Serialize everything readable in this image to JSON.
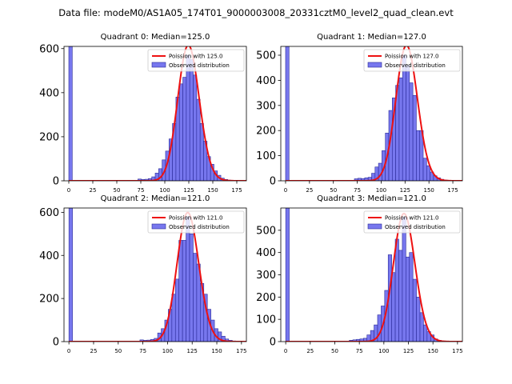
{
  "suptitle": "Data file: modeM0/AS1A05_174T01_9000003008_20331cztM0_level2_quad_clean.evt",
  "legend": {
    "fit_prefix": "Poission with ",
    "observed": "Observed distribution"
  },
  "colors": {
    "hist_fill": "#7777ee",
    "hist_edge": "#2a2a9a",
    "fit_line": "#ee1111",
    "axis": "#000000"
  },
  "chart_data": [
    {
      "type": "bar",
      "title": "Quadrant 0: Median=125.0",
      "median": 125.0,
      "fit_label": "125.0",
      "xlim": [
        -5,
        185
      ],
      "ylim": [
        0,
        610
      ],
      "xticks": [
        0,
        25,
        50,
        75,
        100,
        125,
        150,
        175
      ],
      "yticks": [
        0,
        200,
        400,
        600
      ],
      "bin_width": 3.6,
      "bins_x": [
        0,
        72,
        75.6,
        79.2,
        82.8,
        86.4,
        90,
        93.6,
        97.2,
        100.8,
        104.4,
        108,
        111.6,
        115.2,
        118.8,
        122.4,
        126,
        129.6,
        133.2,
        136.8,
        140.4,
        144,
        147.6,
        151.2,
        154.8,
        158.4,
        162,
        165.6
      ],
      "bins_y": [
        610,
        8,
        6,
        7,
        10,
        18,
        35,
        55,
        95,
        135,
        190,
        260,
        380,
        440,
        470,
        570,
        550,
        480,
        370,
        260,
        180,
        110,
        75,
        45,
        25,
        12,
        6,
        3
      ]
    },
    {
      "type": "bar",
      "title": "Quadrant 1: Median=127.0",
      "median": 127.0,
      "fit_label": "127.0",
      "xlim": [
        -5,
        185
      ],
      "ylim": [
        0,
        535
      ],
      "xticks": [
        0,
        25,
        50,
        75,
        100,
        125,
        150,
        175
      ],
      "yticks": [
        0,
        100,
        200,
        300,
        400,
        500
      ],
      "bin_width": 3.6,
      "bins_x": [
        0,
        72,
        75.6,
        79.2,
        82.8,
        86.4,
        90,
        93.6,
        97.2,
        100.8,
        104.4,
        108,
        111.6,
        115.2,
        118.8,
        122.4,
        126,
        129.6,
        133.2,
        136.8,
        140.4,
        144,
        147.6,
        151.2,
        154.8,
        158.4,
        162,
        165.6
      ],
      "bins_y": [
        535,
        8,
        10,
        9,
        12,
        14,
        30,
        55,
        70,
        120,
        190,
        280,
        330,
        380,
        410,
        500,
        460,
        390,
        340,
        200,
        200,
        90,
        60,
        35,
        20,
        12,
        6,
        3
      ]
    },
    {
      "type": "bar",
      "title": "Quadrant 2: Median=121.0",
      "median": 121.0,
      "fit_label": "121.0",
      "xlim": [
        -5,
        180
      ],
      "ylim": [
        0,
        620
      ],
      "xticks": [
        0,
        25,
        50,
        75,
        100,
        125,
        150,
        175
      ],
      "yticks": [
        0,
        200,
        400,
        600
      ],
      "bin_width": 3.6,
      "bins_x": [
        0,
        72,
        75.6,
        79.2,
        82.8,
        86.4,
        90,
        93.6,
        97.2,
        100.8,
        104.4,
        108,
        111.6,
        115.2,
        118.8,
        122.4,
        126,
        129.6,
        133.2,
        136.8,
        140.4,
        144,
        147.6,
        151.2,
        154.8,
        158.4,
        162,
        165.6
      ],
      "bins_y": [
        620,
        8,
        6,
        7,
        10,
        15,
        40,
        60,
        100,
        150,
        220,
        290,
        470,
        470,
        580,
        500,
        410,
        360,
        270,
        220,
        150,
        100,
        60,
        45,
        25,
        12,
        6,
        3
      ]
    },
    {
      "type": "bar",
      "title": "Quadrant 3: Median=121.0",
      "median": 121.0,
      "fit_label": "121.0",
      "xlim": [
        -5,
        180
      ],
      "ylim": [
        0,
        600
      ],
      "xticks": [
        0,
        25,
        50,
        75,
        100,
        125,
        150,
        175
      ],
      "yticks": [
        0,
        100,
        200,
        300,
        400,
        500
      ],
      "bin_width": 3.6,
      "bins_x": [
        0,
        64.8,
        68.4,
        72,
        75.6,
        79.2,
        82.8,
        86.4,
        90,
        93.6,
        97.2,
        100.8,
        104.4,
        108,
        111.6,
        115.2,
        118.8,
        122.4,
        126,
        129.6,
        133.2,
        136.8,
        140.4,
        144,
        147.6,
        151.2,
        154.8,
        158.4
      ],
      "bins_y": [
        600,
        6,
        8,
        10,
        12,
        15,
        30,
        50,
        75,
        120,
        160,
        230,
        390,
        310,
        460,
        410,
        560,
        380,
        400,
        280,
        200,
        130,
        75,
        45,
        30,
        12,
        6,
        3
      ]
    }
  ]
}
